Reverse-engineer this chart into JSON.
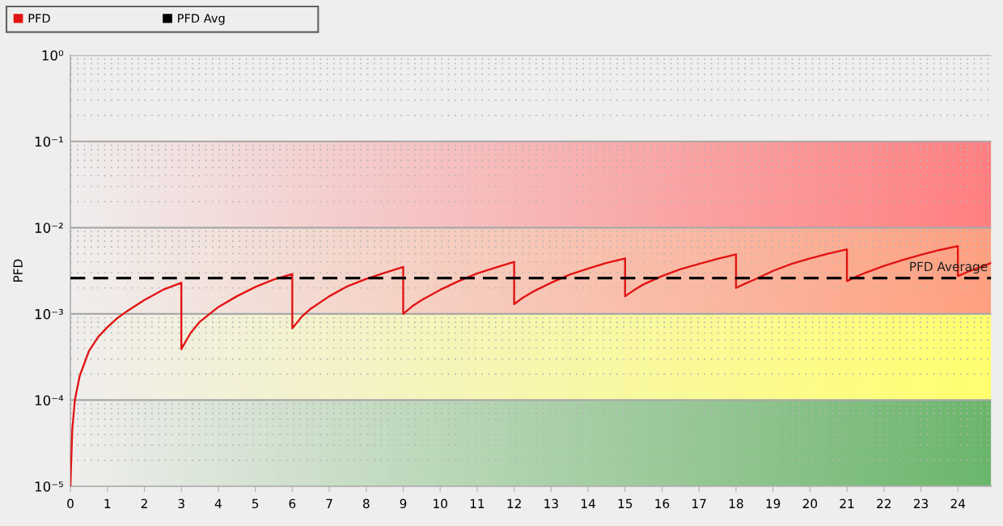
{
  "chart_data": {
    "type": "line",
    "ylabel": "PFD",
    "log": "y",
    "grid": "y",
    "legend": "top left",
    "xlim": [
      0,
      24.9
    ],
    "ylim": [
      1e-05,
      1
    ],
    "xticks": [
      0,
      1,
      2,
      3,
      4,
      5,
      6,
      7,
      8,
      9,
      10,
      11,
      12,
      13,
      14,
      15,
      16,
      17,
      18,
      19,
      20,
      21,
      22,
      23,
      24
    ],
    "yticks": [
      {
        "value": 1e-05,
        "label": "10⁻⁵"
      },
      {
        "value": 0.0001,
        "label": "10⁻⁴"
      },
      {
        "value": 0.001,
        "label": "10⁻³"
      },
      {
        "value": 0.01,
        "label": "10⁻²"
      },
      {
        "value": 0.1,
        "label": "10⁻¹"
      },
      {
        "value": 1,
        "label": "10⁰"
      }
    ],
    "bands": [
      {
        "axis": "y",
        "from": 0.01,
        "to": 0.1,
        "color": "#ff7f80"
      },
      {
        "axis": "y",
        "from": 0.001,
        "to": 0.01,
        "color": "#ffa080"
      },
      {
        "axis": "y",
        "from": 0.0001,
        "to": 0.001,
        "color": "#ffff70"
      },
      {
        "axis": "y",
        "from": 1e-05,
        "to": 0.0001,
        "color": "#6cb66c"
      }
    ],
    "series": [
      {
        "name": "PFD",
        "color": "#e21313",
        "x": [
          0,
          0.05,
          0.12,
          0.25,
          0.5,
          0.75,
          1,
          1.25,
          1.5,
          2,
          2.5,
          3,
          3,
          3.25,
          3.5,
          4,
          4.5,
          5,
          5.5,
          6,
          6,
          6.25,
          6.5,
          7,
          7.5,
          8,
          8.5,
          9,
          9,
          9.25,
          9.5,
          10,
          10.5,
          11,
          11.5,
          12,
          12,
          12.25,
          12.5,
          13,
          13.5,
          14,
          14.5,
          15,
          15,
          15.25,
          15.5,
          16,
          16.5,
          17,
          17.5,
          18,
          18,
          18.25,
          18.5,
          19,
          19.5,
          20,
          20.5,
          21,
          21,
          21.25,
          21.5,
          22,
          22.5,
          23,
          23.5,
          24,
          24,
          24.25,
          24.5,
          24.9
        ],
        "values": [
          1e-05,
          4.5e-05,
          0.0001,
          0.00019,
          0.00037,
          0.00054,
          0.0007,
          0.00088,
          0.00105,
          0.00145,
          0.0019,
          0.0023,
          0.00039,
          0.0006,
          0.00081,
          0.0012,
          0.0016,
          0.00205,
          0.0025,
          0.0029,
          0.00068,
          0.00092,
          0.00115,
          0.0016,
          0.0021,
          0.00255,
          0.003,
          0.0035,
          0.001,
          0.00123,
          0.00145,
          0.0019,
          0.0024,
          0.00295,
          0.00345,
          0.004,
          0.0013,
          0.00155,
          0.0018,
          0.0023,
          0.00285,
          0.00335,
          0.0039,
          0.0044,
          0.0016,
          0.0019,
          0.0022,
          0.00275,
          0.0033,
          0.0038,
          0.00435,
          0.0049,
          0.002,
          0.00225,
          0.0025,
          0.00315,
          0.0038,
          0.0044,
          0.005,
          0.0056,
          0.0024,
          0.0027,
          0.003,
          0.0036,
          0.0042,
          0.00485,
          0.0055,
          0.0061,
          0.00275,
          0.00305,
          0.00335,
          0.0039
        ]
      },
      {
        "name": "PFD Avg",
        "color": "#000000",
        "line_style": "dashed",
        "x": [
          0,
          24.9
        ],
        "values": [
          0.0026,
          0.0026
        ]
      }
    ],
    "annotations": [
      {
        "text": "PFD Average",
        "x": 24.9,
        "y": 0.0026
      }
    ]
  }
}
